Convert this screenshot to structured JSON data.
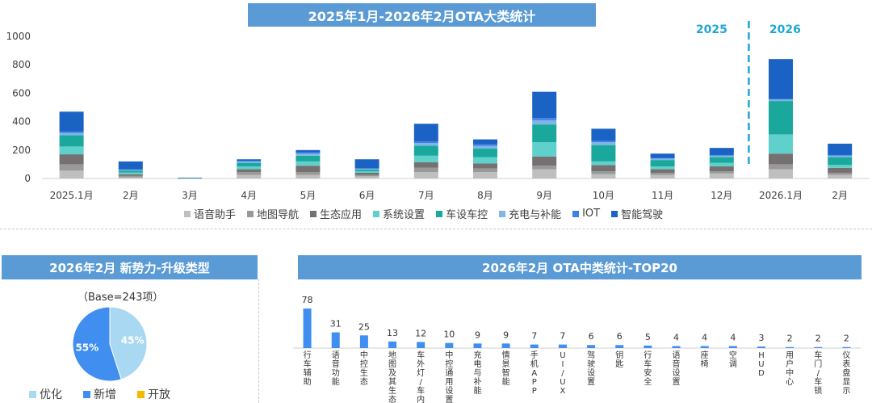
{
  "titles": {
    "main": "2025年1月-2026年2月OTA大类统计",
    "pie": "2026年2月 新势力-升级类型",
    "top20": "2026年2月 OTA中类统计-TOP20"
  },
  "year_markers": [
    "2025",
    "2026"
  ],
  "pie_base": "（Base=243项）",
  "chart_data": [
    {
      "type": "bar",
      "stacked": true,
      "title": "2025年1月-2026年2月OTA大类统计",
      "categories": [
        "2025.1月",
        "2月",
        "3月",
        "4月",
        "5月",
        "6月",
        "7月",
        "8月",
        "9月",
        "10月",
        "11月",
        "12月",
        "2026.1月",
        "2月"
      ],
      "ylim": [
        0,
        1000
      ],
      "yticks": [
        "0",
        "200",
        "400",
        "600",
        "800",
        "1000"
      ],
      "legend_position": "bottom",
      "series": [
        {
          "name": "语音助手",
          "color": "#bfbfbf",
          "values": [
            55,
            8,
            1,
            25,
            25,
            15,
            45,
            45,
            65,
            30,
            25,
            35,
            65,
            25
          ]
        },
        {
          "name": "地图导航",
          "color": "#999999",
          "values": [
            45,
            10,
            1,
            20,
            20,
            10,
            30,
            25,
            25,
            20,
            15,
            15,
            35,
            15
          ]
        },
        {
          "name": "生态应用",
          "color": "#767171",
          "values": [
            70,
            12,
            1,
            20,
            45,
            15,
            40,
            35,
            65,
            45,
            25,
            35,
            75,
            35
          ]
        },
        {
          "name": "系统设置",
          "color": "#5fd0cc",
          "values": [
            55,
            12,
            1,
            20,
            30,
            10,
            45,
            45,
            100,
            25,
            20,
            25,
            135,
            20
          ]
        },
        {
          "name": "车设车控",
          "color": "#1aa89c",
          "values": [
            80,
            13,
            1,
            25,
            40,
            12,
            70,
            60,
            125,
            115,
            45,
            40,
            235,
            55
          ]
        },
        {
          "name": "充电与补能",
          "color": "#7fb6e6",
          "values": [
            15,
            5,
            0,
            10,
            15,
            5,
            20,
            20,
            30,
            20,
            10,
            10,
            10,
            10
          ]
        },
        {
          "name": "IOT",
          "color": "#3f7fe8",
          "values": [
            10,
            5,
            0,
            5,
            10,
            5,
            10,
            10,
            15,
            10,
            5,
            5,
            5,
            5
          ]
        },
        {
          "name": "智能驾驶",
          "color": "#1a62c4",
          "values": [
            140,
            55,
            1,
            10,
            15,
            63,
            125,
            35,
            185,
            85,
            30,
            50,
            280,
            80
          ]
        }
      ]
    },
    {
      "type": "pie",
      "title": "2026年2月 新势力-升级类型",
      "legend_position": "bottom",
      "slices": [
        {
          "name": "优化",
          "value": 45,
          "label": "45%",
          "color": "#a9d8f2"
        },
        {
          "name": "新增",
          "value": 55,
          "label": "55%",
          "color": "#3f8ef0"
        },
        {
          "name": "开放",
          "value": 0,
          "label": "",
          "color": "#f5b800"
        }
      ]
    },
    {
      "type": "bar",
      "title": "2026年2月 OTA中类统计-TOP20",
      "categories": [
        "行车辅助",
        "语音功能",
        "中控生态",
        "地图及其生态",
        "车外灯/车内灯",
        "中控通用设置",
        "充电与补能",
        "情景智能",
        "手机APP",
        "UI/UX",
        "驾驶设置",
        "钥匙",
        "行车安全",
        "语音设置",
        "座椅",
        "空调",
        "HUD",
        "用户中心",
        "车门/车锁",
        "仪表盘显示"
      ],
      "values": [
        78,
        31,
        25,
        13,
        12,
        10,
        9,
        9,
        7,
        7,
        6,
        6,
        5,
        4,
        4,
        4,
        3,
        2,
        2,
        2
      ],
      "color": "#3f8ef0"
    }
  ]
}
